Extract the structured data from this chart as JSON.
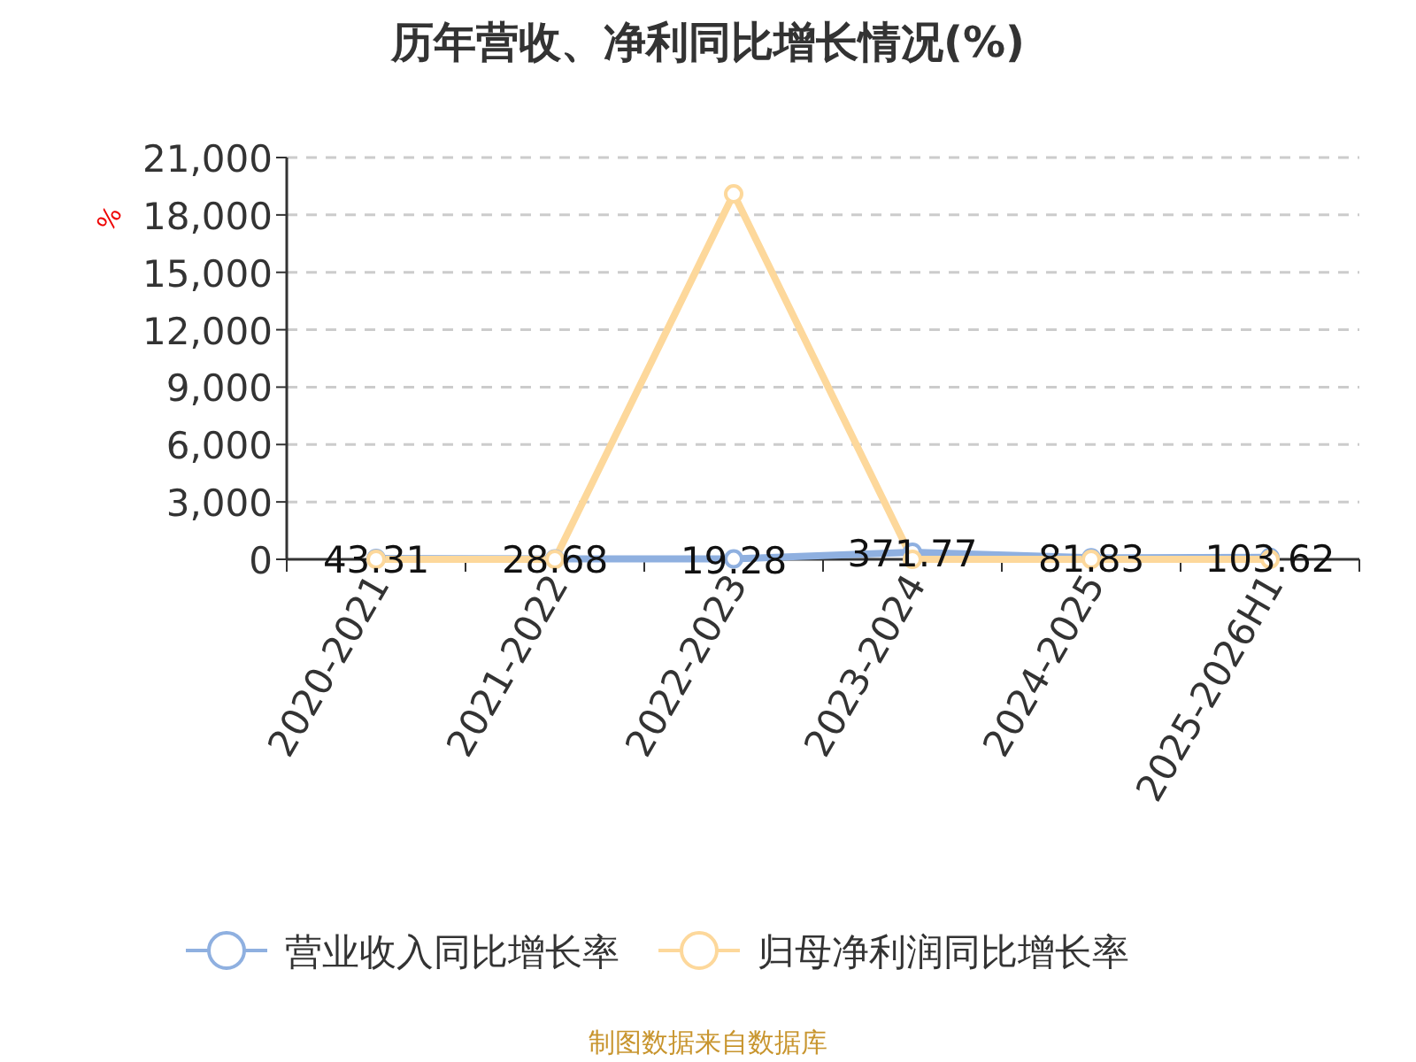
{
  "chart_data": {
    "type": "line",
    "title": "历年营收、净利同比增长情况(%)",
    "ylabel": "%",
    "categories": [
      "2020-2021",
      "2021-2022",
      "2022-2023",
      "2023-2024",
      "2024-2025",
      "2025-2026H1"
    ],
    "series": [
      {
        "name": "营业收入同比增长率",
        "color": "#8fb0e0",
        "values": [
          43.31,
          28.68,
          19.28,
          371.77,
          81.83,
          103.62
        ],
        "value_labels": [
          "43.31",
          "28.68",
          "19.28",
          "371.77",
          "81.83",
          "103.62"
        ]
      },
      {
        "name": "归母净利润同比增长率",
        "color": "#fdd89b",
        "values": [
          0,
          0,
          19100,
          0,
          0,
          0
        ]
      }
    ],
    "ylim": [
      0,
      21000
    ],
    "yticks": [
      {
        "value": 0,
        "label": "0"
      },
      {
        "value": 3000,
        "label": "3,000"
      },
      {
        "value": 6000,
        "label": "6,000"
      },
      {
        "value": 9000,
        "label": "9,000"
      },
      {
        "value": 12000,
        "label": "12,000"
      },
      {
        "value": 15000,
        "label": "15,000"
      },
      {
        "value": 18000,
        "label": "18,000"
      },
      {
        "value": 21000,
        "label": "21,000"
      }
    ],
    "grid": "y",
    "legend": "bottom",
    "marker": "circle",
    "line_style": "solid",
    "annotations": [
      "制图数据来自数据库"
    ]
  }
}
